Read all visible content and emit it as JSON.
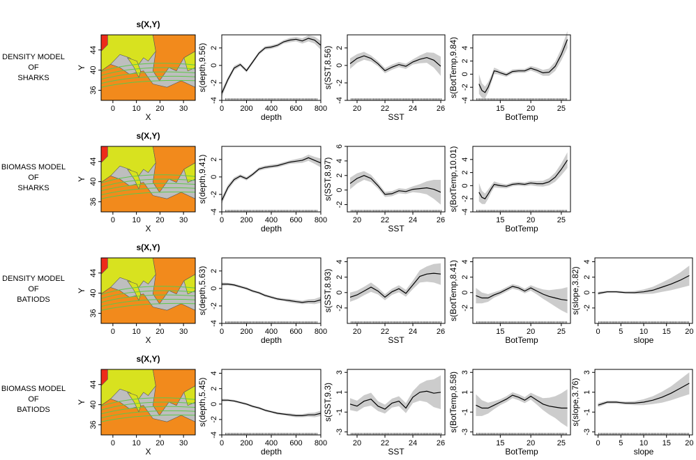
{
  "row_labels": [
    "DENSITY MODEL\nOF\nSHARKS",
    "BIOMASS MODEL\nOF\nSHARKS",
    "DENSITY MODEL\nOF\nBATIODS",
    "BIOMASS MODEL\nOF\nBATIODS"
  ],
  "colors": {
    "curve": "#000000",
    "band": "#cccccc",
    "map_bg": "#bebebe",
    "land_warm": "#f28a1c",
    "land_cool": "#d8e21f",
    "contour": "#5ec84b",
    "corner": "#ee2b1a"
  },
  "chart_data": [
    {
      "type": "heatmap",
      "panel": "map",
      "row": 0,
      "title": "s(X,Y)",
      "xlabel": "X",
      "ylabel": "Y",
      "xticks": [
        "0",
        "10",
        "20",
        "30"
      ],
      "yticks": [
        "36",
        "40",
        "44"
      ],
      "xlim": [
        -5,
        35
      ],
      "ylim": [
        34,
        47
      ]
    },
    {
      "type": "line",
      "panel": "depth",
      "row": 0,
      "title": "",
      "xlabel": "depth",
      "ylabel": "s(depth,9.56)",
      "xticks": [
        "0",
        "200",
        "400",
        "600",
        "800"
      ],
      "yticks": [
        "-4",
        "-2",
        "0",
        "2"
      ],
      "xlim": [
        0,
        800
      ],
      "ylim": [
        -4,
        3.5
      ],
      "x": [
        0,
        50,
        100,
        150,
        200,
        250,
        300,
        350,
        400,
        450,
        500,
        550,
        600,
        650,
        700,
        750,
        800
      ],
      "y": [
        -3.2,
        -1.6,
        -0.3,
        0.1,
        -0.6,
        0.4,
        1.4,
        2.0,
        2.1,
        2.3,
        2.7,
        2.9,
        3.0,
        2.8,
        3.1,
        2.9,
        2.3
      ],
      "se": [
        0.4,
        0.3,
        0.25,
        0.2,
        0.2,
        0.2,
        0.2,
        0.2,
        0.2,
        0.2,
        0.2,
        0.25,
        0.25,
        0.3,
        0.35,
        0.4,
        0.5
      ]
    },
    {
      "type": "line",
      "panel": "SST",
      "row": 0,
      "title": "",
      "xlabel": "SST",
      "ylabel": "s(SST,8.56)",
      "xticks": [
        "20",
        "22",
        "24",
        "26"
      ],
      "yticks": [
        "-4",
        "-2",
        "0",
        "2"
      ],
      "xlim": [
        19.3,
        26.3
      ],
      "ylim": [
        -4,
        3.5
      ],
      "x": [
        19.5,
        20,
        20.5,
        21,
        21.5,
        22,
        22.5,
        23,
        23.5,
        24,
        24.5,
        25,
        25.5,
        26
      ],
      "y": [
        0.2,
        0.8,
        1.1,
        0.8,
        0.2,
        -0.6,
        -0.2,
        0.1,
        -0.1,
        0.4,
        0.7,
        0.9,
        0.6,
        -0.1
      ],
      "se": [
        0.6,
        0.5,
        0.45,
        0.35,
        0.3,
        0.3,
        0.3,
        0.3,
        0.3,
        0.3,
        0.45,
        0.6,
        0.85,
        1.1
      ]
    },
    {
      "type": "line",
      "panel": "BotTemp",
      "row": 0,
      "title": "",
      "xlabel": "BotTemp",
      "ylabel": "s(BotTemp,9.84)",
      "xticks": [
        "15",
        "20",
        "25"
      ],
      "yticks": [
        "-4",
        "-2",
        "0",
        "2",
        "4"
      ],
      "xlim": [
        10.5,
        26.5
      ],
      "ylim": [
        -4,
        6
      ],
      "x": [
        11.5,
        12,
        12.5,
        13,
        13.5,
        14,
        14.5,
        15,
        16,
        17,
        18,
        19,
        20,
        21,
        22,
        23,
        24,
        25,
        26
      ],
      "y": [
        -1.5,
        -2.5,
        -2.8,
        -2.0,
        -0.8,
        0.5,
        0.4,
        0.2,
        -0.1,
        0.4,
        0.5,
        0.5,
        0.9,
        0.6,
        0.2,
        0.3,
        1.2,
        3.0,
        5.3
      ],
      "se": [
        1.5,
        1.1,
        0.9,
        0.8,
        0.6,
        0.5,
        0.4,
        0.35,
        0.3,
        0.3,
        0.3,
        0.3,
        0.35,
        0.4,
        0.45,
        0.55,
        0.7,
        0.9,
        1.3
      ]
    },
    {
      "type": "heatmap",
      "panel": "map",
      "row": 1,
      "title": "s(X,Y)",
      "xlabel": "X",
      "ylabel": "Y",
      "xticks": [
        "0",
        "10",
        "20",
        "30"
      ],
      "yticks": [
        "36",
        "40",
        "44"
      ],
      "xlim": [
        -5,
        35
      ],
      "ylim": [
        34,
        47
      ]
    },
    {
      "type": "line",
      "panel": "depth",
      "row": 1,
      "title": "",
      "xlabel": "depth",
      "ylabel": "s(depth,9.41)",
      "xticks": [
        "0",
        "200",
        "400",
        "600",
        "800"
      ],
      "yticks": [
        "-4",
        "-2",
        "0",
        "2"
      ],
      "xlim": [
        0,
        800
      ],
      "ylim": [
        -4,
        3.5
      ],
      "x": [
        0,
        50,
        100,
        150,
        200,
        250,
        300,
        350,
        400,
        450,
        500,
        550,
        600,
        650,
        700,
        750,
        800
      ],
      "y": [
        -2.7,
        -1.2,
        -0.3,
        0.1,
        -0.2,
        0.3,
        0.9,
        1.1,
        1.2,
        1.3,
        1.5,
        1.7,
        1.8,
        1.9,
        2.2,
        1.9,
        1.6
      ],
      "se": [
        0.4,
        0.3,
        0.25,
        0.2,
        0.2,
        0.2,
        0.2,
        0.2,
        0.2,
        0.2,
        0.2,
        0.2,
        0.25,
        0.3,
        0.35,
        0.4,
        0.5
      ]
    },
    {
      "type": "line",
      "panel": "SST",
      "row": 1,
      "title": "",
      "xlabel": "SST",
      "ylabel": "s(SST,8.97)",
      "xticks": [
        "20",
        "22",
        "24",
        "26"
      ],
      "yticks": [
        "-2",
        "0",
        "2",
        "4",
        "6"
      ],
      "xlim": [
        19.3,
        26.3
      ],
      "ylim": [
        -3,
        6
      ],
      "x": [
        19.5,
        20,
        20.5,
        21,
        21.5,
        22,
        22.5,
        23,
        23.5,
        24,
        24.5,
        25,
        25.5,
        26
      ],
      "y": [
        0.9,
        1.6,
        2.0,
        1.6,
        0.6,
        -0.6,
        -0.5,
        -0.1,
        -0.2,
        0.1,
        0.2,
        0.3,
        0.1,
        -0.3
      ],
      "se": [
        0.8,
        0.7,
        0.6,
        0.5,
        0.4,
        0.35,
        0.35,
        0.35,
        0.35,
        0.4,
        0.6,
        0.9,
        1.3,
        1.7
      ]
    },
    {
      "type": "line",
      "panel": "BotTemp",
      "row": 1,
      "title": "",
      "xlabel": "BotTemp",
      "ylabel": "s(BotTemp,10.01)",
      "xticks": [
        "15",
        "20",
        "25"
      ],
      "yticks": [
        "-4",
        "-2",
        "0",
        "2",
        "4"
      ],
      "xlim": [
        10.5,
        26.5
      ],
      "ylim": [
        -4,
        6
      ],
      "x": [
        11.5,
        12,
        12.5,
        13,
        13.5,
        14,
        14.5,
        15,
        16,
        17,
        18,
        19,
        20,
        21,
        22,
        23,
        24,
        25,
        26
      ],
      "y": [
        -1.0,
        -1.8,
        -2.0,
        -1.3,
        -0.5,
        0.2,
        0.1,
        0.0,
        -0.1,
        0.2,
        0.3,
        0.2,
        0.4,
        0.3,
        0.3,
        0.6,
        1.3,
        2.5,
        3.9
      ],
      "se": [
        1.4,
        1.0,
        0.8,
        0.7,
        0.55,
        0.45,
        0.4,
        0.35,
        0.3,
        0.3,
        0.3,
        0.3,
        0.35,
        0.4,
        0.45,
        0.55,
        0.7,
        0.9,
        1.2
      ]
    },
    {
      "type": "heatmap",
      "panel": "map",
      "row": 2,
      "title": "s(X,Y)",
      "xlabel": "X",
      "ylabel": "Y",
      "xticks": [
        "0",
        "10",
        "20",
        "30"
      ],
      "yticks": [
        "36",
        "40",
        "44"
      ],
      "xlim": [
        -5,
        35
      ],
      "ylim": [
        34,
        47
      ]
    },
    {
      "type": "line",
      "panel": "depth",
      "row": 2,
      "title": "",
      "xlabel": "depth",
      "ylabel": "s(depth,5.63)",
      "xticks": [
        "0",
        "200",
        "400",
        "600",
        "800"
      ],
      "yticks": [
        "-4",
        "-2",
        "0",
        "2"
      ],
      "xlim": [
        0,
        800
      ],
      "ylim": [
        -4,
        3.5
      ],
      "x": [
        0,
        50,
        100,
        150,
        200,
        250,
        300,
        350,
        400,
        450,
        500,
        550,
        600,
        650,
        700,
        750,
        800
      ],
      "y": [
        0.5,
        0.5,
        0.4,
        0.2,
        0.0,
        -0.3,
        -0.5,
        -0.8,
        -1.0,
        -1.2,
        -1.3,
        -1.4,
        -1.5,
        -1.6,
        -1.5,
        -1.5,
        -1.3
      ],
      "se": [
        0.2,
        0.15,
        0.15,
        0.15,
        0.15,
        0.15,
        0.15,
        0.15,
        0.15,
        0.15,
        0.15,
        0.2,
        0.2,
        0.2,
        0.25,
        0.3,
        0.35
      ]
    },
    {
      "type": "line",
      "panel": "SST",
      "row": 2,
      "title": "",
      "xlabel": "SST",
      "ylabel": "s(SST,8.93)",
      "xticks": [
        "20",
        "22",
        "24",
        "26"
      ],
      "yticks": [
        "-2",
        "0",
        "2",
        "4"
      ],
      "xlim": [
        19.3,
        26.3
      ],
      "ylim": [
        -4,
        4.5
      ],
      "x": [
        19.5,
        20,
        20.5,
        21,
        21.5,
        22,
        22.5,
        23,
        23.5,
        24,
        24.5,
        25,
        25.5,
        26
      ],
      "y": [
        -0.6,
        -0.3,
        0.2,
        0.7,
        0.2,
        -0.6,
        0.1,
        0.5,
        -0.1,
        1.0,
        2.1,
        2.4,
        2.5,
        2.4
      ],
      "se": [
        0.6,
        0.55,
        0.55,
        0.6,
        0.45,
        0.4,
        0.4,
        0.45,
        0.45,
        0.55,
        0.8,
        1.0,
        1.2,
        1.4
      ]
    },
    {
      "type": "line",
      "panel": "BotTemp",
      "row": 2,
      "title": "",
      "xlabel": "BotTemp",
      "ylabel": "s(BotTemp,8.41)",
      "xticks": [
        "15",
        "20",
        "25"
      ],
      "yticks": [
        "-2",
        "0",
        "2",
        "4"
      ],
      "xlim": [
        10.5,
        26.5
      ],
      "ylim": [
        -4,
        4.5
      ],
      "x": [
        11,
        12,
        13,
        14,
        15,
        16,
        17,
        18,
        19,
        20,
        21,
        22,
        23,
        24,
        25,
        26
      ],
      "y": [
        -0.4,
        -0.7,
        -0.7,
        -0.3,
        0.0,
        0.4,
        0.8,
        0.6,
        0.2,
        0.6,
        0.2,
        -0.2,
        -0.5,
        -0.7,
        -0.9,
        -1.0
      ],
      "se": [
        1.0,
        0.7,
        0.5,
        0.35,
        0.3,
        0.3,
        0.3,
        0.3,
        0.3,
        0.35,
        0.45,
        0.6,
        0.8,
        1.1,
        1.4,
        1.7
      ]
    },
    {
      "type": "line",
      "panel": "slope",
      "row": 2,
      "title": "",
      "xlabel": "slope",
      "ylabel": "s(slope,3.82)",
      "xticks": [
        "0",
        "5",
        "10",
        "15",
        "20"
      ],
      "yticks": [
        "-2",
        "0",
        "2",
        "4"
      ],
      "xlim": [
        -0.7,
        20.7
      ],
      "ylim": [
        -4,
        4.5
      ],
      "x": [
        0,
        2,
        4,
        6,
        8,
        10,
        12,
        14,
        16,
        18,
        20
      ],
      "y": [
        -0.1,
        0.1,
        0.1,
        0.0,
        0.0,
        0.1,
        0.3,
        0.7,
        1.1,
        1.6,
        2.2
      ],
      "se": [
        0.2,
        0.15,
        0.15,
        0.15,
        0.2,
        0.3,
        0.45,
        0.6,
        0.8,
        1.0,
        1.3
      ]
    },
    {
      "type": "heatmap",
      "panel": "map",
      "row": 3,
      "title": "s(X,Y)",
      "xlabel": "X",
      "ylabel": "Y",
      "xticks": [
        "0",
        "10",
        "20",
        "30"
      ],
      "yticks": [
        "36",
        "40",
        "44"
      ],
      "xlim": [
        -5,
        35
      ],
      "ylim": [
        34,
        47
      ]
    },
    {
      "type": "line",
      "panel": "depth",
      "row": 3,
      "title": "",
      "xlabel": "depth",
      "ylabel": "s(depth,5.45)",
      "xticks": [
        "0",
        "200",
        "400",
        "600",
        "800"
      ],
      "yticks": [
        "-4",
        "-2",
        "0",
        "2",
        "4"
      ],
      "xlim": [
        0,
        800
      ],
      "ylim": [
        -4,
        4.5
      ],
      "x": [
        0,
        50,
        100,
        150,
        200,
        250,
        300,
        350,
        400,
        450,
        500,
        550,
        600,
        650,
        700,
        750,
        800
      ],
      "y": [
        0.5,
        0.5,
        0.4,
        0.2,
        0.0,
        -0.3,
        -0.5,
        -0.8,
        -1.0,
        -1.2,
        -1.3,
        -1.4,
        -1.5,
        -1.5,
        -1.4,
        -1.4,
        -1.2
      ],
      "se": [
        0.2,
        0.15,
        0.15,
        0.15,
        0.15,
        0.15,
        0.15,
        0.15,
        0.15,
        0.15,
        0.15,
        0.2,
        0.2,
        0.2,
        0.25,
        0.3,
        0.35
      ]
    },
    {
      "type": "line",
      "panel": "SST",
      "row": 3,
      "title": "",
      "xlabel": "SST",
      "ylabel": "s(SST,9.3)",
      "xticks": [
        "20",
        "22",
        "24",
        "26"
      ],
      "yticks": [
        "-3",
        "-1",
        "1",
        "3"
      ],
      "xlim": [
        19.3,
        26.3
      ],
      "ylim": [
        -3.3,
        3.3
      ],
      "x": [
        19.5,
        20,
        20.5,
        21,
        21.5,
        22,
        22.5,
        23,
        23.5,
        24,
        24.5,
        25,
        25.5,
        26
      ],
      "y": [
        -0.2,
        -0.4,
        0.1,
        0.3,
        -0.4,
        -0.7,
        -0.1,
        0.1,
        -0.6,
        0.5,
        1.0,
        1.1,
        0.9,
        1.0
      ],
      "se": [
        0.6,
        0.55,
        0.6,
        0.65,
        0.5,
        0.45,
        0.45,
        0.5,
        0.5,
        0.6,
        0.85,
        1.1,
        1.4,
        1.7
      ]
    },
    {
      "type": "line",
      "panel": "BotTemp",
      "row": 3,
      "title": "",
      "xlabel": "BotTemp",
      "ylabel": "s(BotTemp,8.58)",
      "xticks": [
        "15",
        "20",
        "25"
      ],
      "yticks": [
        "-3",
        "-1",
        "1",
        "3"
      ],
      "xlim": [
        10.5,
        26.5
      ],
      "ylim": [
        -3.3,
        3.3
      ],
      "x": [
        11,
        12,
        13,
        14,
        15,
        16,
        17,
        18,
        19,
        20,
        21,
        22,
        23,
        24,
        25,
        26
      ],
      "y": [
        -0.3,
        -0.6,
        -0.6,
        -0.3,
        0.0,
        0.3,
        0.7,
        0.5,
        0.2,
        0.6,
        0.2,
        -0.2,
        -0.4,
        -0.5,
        -0.6,
        -0.6
      ],
      "se": [
        1.1,
        0.8,
        0.55,
        0.4,
        0.3,
        0.3,
        0.3,
        0.3,
        0.3,
        0.35,
        0.45,
        0.6,
        0.85,
        1.1,
        1.5,
        1.9
      ]
    },
    {
      "type": "line",
      "panel": "slope",
      "row": 3,
      "title": "",
      "xlabel": "slope",
      "ylabel": "s(slope,3.76)",
      "xticks": [
        "0",
        "5",
        "10",
        "15",
        "20"
      ],
      "yticks": [
        "-3",
        "-1",
        "1",
        "3"
      ],
      "xlim": [
        -0.7,
        20.7
      ],
      "ylim": [
        -3.3,
        3.3
      ],
      "x": [
        0,
        2,
        4,
        6,
        8,
        10,
        12,
        14,
        16,
        18,
        20
      ],
      "y": [
        -0.3,
        0.0,
        0.0,
        -0.1,
        -0.1,
        0.0,
        0.2,
        0.5,
        0.9,
        1.4,
        1.9
      ],
      "se": [
        0.2,
        0.15,
        0.15,
        0.15,
        0.2,
        0.3,
        0.4,
        0.55,
        0.7,
        0.9,
        1.1
      ]
    }
  ]
}
